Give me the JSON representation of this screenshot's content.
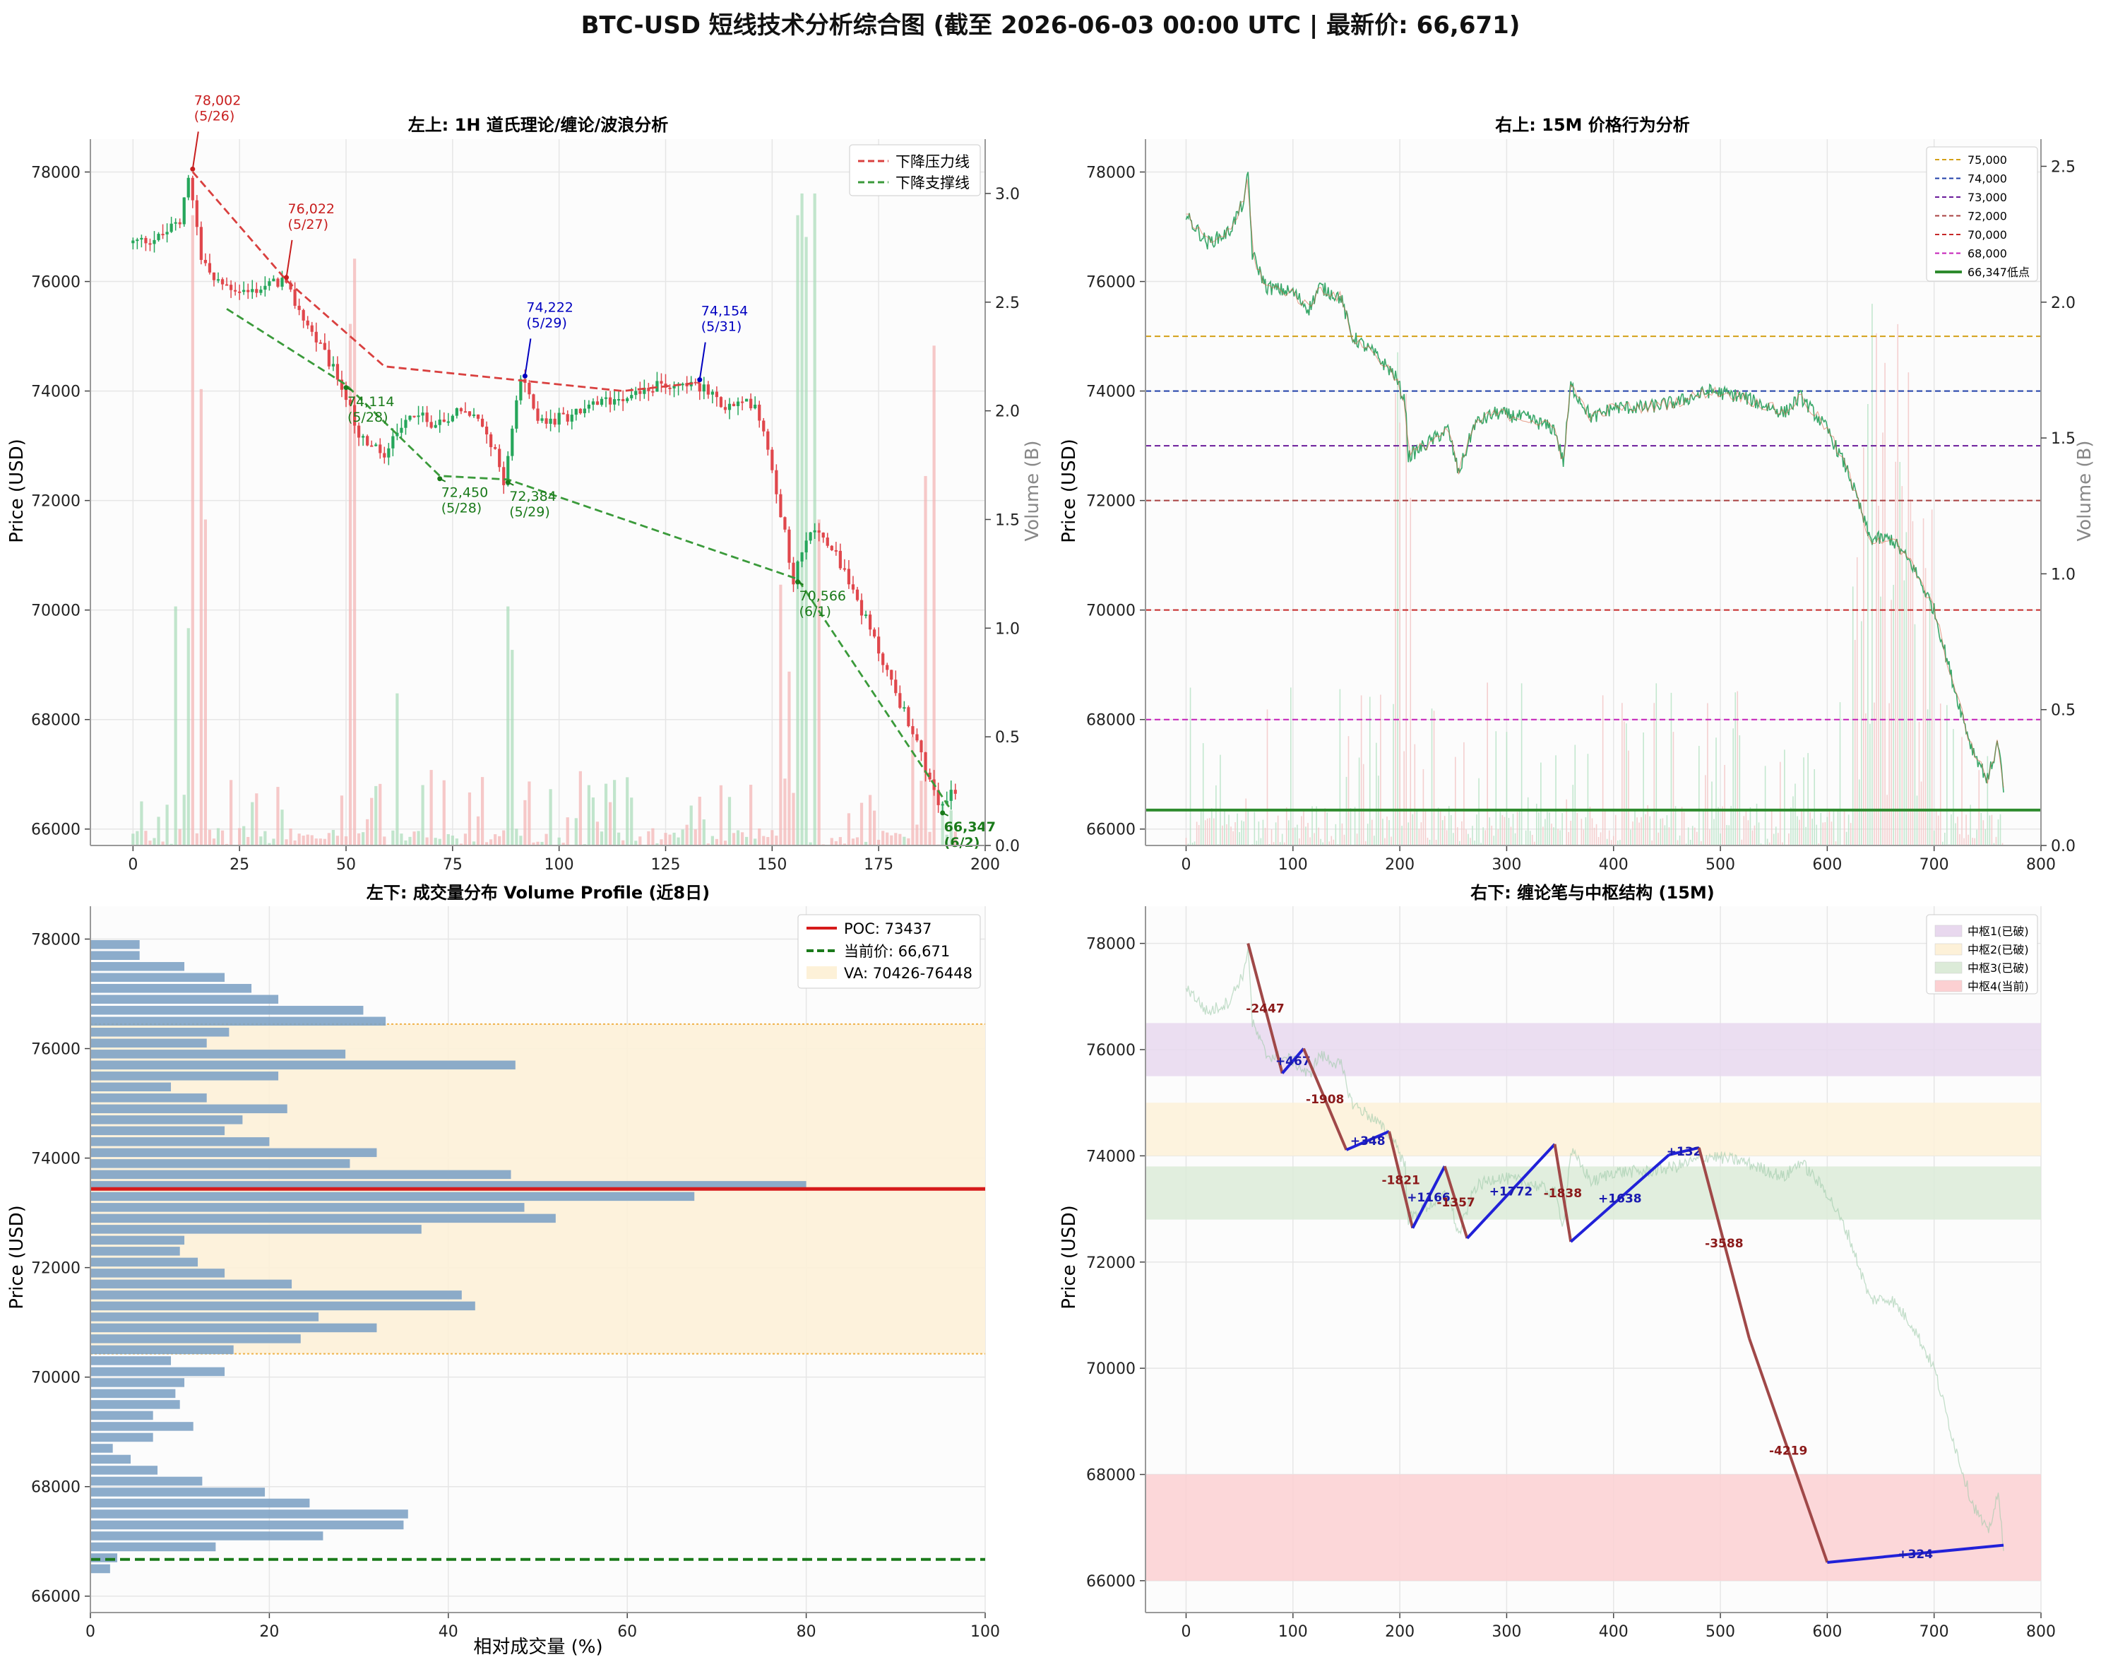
{
  "title": "BTC-USD 短线技术分析综合图 (截至 2026-06-03 00:00 UTC | 最新价: 66,671)",
  "colors": {
    "up": "#26a65b",
    "down": "#e0474c",
    "grid": "#e6e6e6",
    "axis": "#999999"
  },
  "charts": {
    "tl": {
      "title": "左上: 1H 道氏理论/缠论/波浪分析",
      "ylabel": "Price (USD)",
      "y2label": "Volume (B)",
      "legend": [
        "下降压力线",
        "下降支撑线"
      ],
      "annotations": [
        {
          "x": 14,
          "y": 78002,
          "text": "78,002",
          "date": "(5/26)",
          "color": "#c81e1e",
          "dx": 2,
          "dy": -95
        },
        {
          "x": 36,
          "y": 76022,
          "text": "76,022",
          "date": "(5/27)",
          "color": "#c81e1e",
          "dx": 2,
          "dy": -95
        },
        {
          "x": 92,
          "y": 74222,
          "text": "74,222",
          "date": "(5/29)",
          "color": "#0000c0",
          "dx": 2,
          "dy": -95
        },
        {
          "x": 133,
          "y": 74154,
          "text": "74,154",
          "date": "(5/31)",
          "color": "#0000c0",
          "dx": 2,
          "dy": -95
        },
        {
          "x": 50,
          "y": 74114,
          "text": "74,114",
          "date": "(5/28)",
          "color": "#1a7a1a",
          "dx": 2,
          "dy": 30
        },
        {
          "x": 72,
          "y": 72450,
          "text": "72,450",
          "date": "(5/28)",
          "color": "#1a7a1a",
          "dx": 2,
          "dy": 30
        },
        {
          "x": 88,
          "y": 72384,
          "text": "72,384",
          "date": "(5/29)",
          "color": "#1a7a1a",
          "dx": 2,
          "dy": 30
        },
        {
          "x": 156,
          "y": 70566,
          "text": "70,566",
          "date": "(6/1)",
          "color": "#1a7a1a",
          "dx": 2,
          "dy": 30
        },
        {
          "x": 190,
          "y": 66347,
          "text": "66,347",
          "date": "(6/2)",
          "color": "#1a7a1a",
          "dx": 2,
          "dy": 30,
          "bold": true
        }
      ]
    },
    "tr": {
      "title": "右上: 15M 价格行为分析",
      "ylabel": "Price (USD)",
      "y2label": "Volume (B)",
      "levels": [
        {
          "label": "75,000",
          "y": 75000,
          "color": "#d4a017"
        },
        {
          "label": "74,000",
          "y": 74000,
          "color": "#1f3fa8"
        },
        {
          "label": "73,000",
          "y": 73000,
          "color": "#6a1b9a"
        },
        {
          "label": "72,000",
          "y": 72000,
          "color": "#a84040"
        },
        {
          "label": "70,000",
          "y": 70000,
          "color": "#c62828"
        },
        {
          "label": "68,000",
          "y": 68000,
          "color": "#c41fb8"
        },
        {
          "label": "66,347低点",
          "y": 66347,
          "color": "#2e8b2e",
          "solid": true
        }
      ]
    },
    "bl": {
      "title": "左下: 成交量分布 Volume Profile (近8日)",
      "ylabel": "Price (USD)",
      "xlabel": "相对成交量 (%)",
      "legend": [
        "POC: 73437",
        "当前价: 66,671",
        "VA: 70426-76448"
      ]
    },
    "br": {
      "title": "右下: 缠论笔与中枢结构 (15M)",
      "ylabel": "Price (USD)",
      "zones": [
        {
          "label": "中枢1(已破)",
          "y0": 75500,
          "y1": 76500,
          "color": "#e8d8ee"
        },
        {
          "label": "中枢2(已破)",
          "y0": 74000,
          "y1": 75000,
          "color": "#fdf1d8"
        },
        {
          "label": "中枢3(已破)",
          "y0": 72800,
          "y1": 73800,
          "color": "#dcebd8"
        },
        {
          "label": "中枢4(当前)",
          "y0": 66000,
          "y1": 68000,
          "color": "#fcd0d2"
        }
      ]
    }
  },
  "chart_data": [
    {
      "type": "candlestick",
      "timeframe": "1H",
      "xlim": [
        -10,
        200
      ],
      "ylim": [
        65700,
        78600
      ],
      "y2lim": [
        0,
        3.25
      ],
      "xticks": [
        0,
        25,
        50,
        75,
        100,
        125,
        150,
        175,
        200
      ],
      "yticks": [
        66000,
        68000,
        70000,
        72000,
        74000,
        76000,
        78000
      ],
      "y2ticks": [
        0.0,
        0.5,
        1.0,
        1.5,
        2.0,
        2.5,
        3.0
      ],
      "price_path": [
        [
          0,
          76700
        ],
        [
          7,
          76800
        ],
        [
          12,
          77100
        ],
        [
          14,
          78002
        ],
        [
          17,
          76500
        ],
        [
          20,
          76000
        ],
        [
          28,
          75800
        ],
        [
          36,
          76022
        ],
        [
          42,
          75200
        ],
        [
          50,
          74114
        ],
        [
          54,
          73200
        ],
        [
          60,
          72800
        ],
        [
          66,
          73600
        ],
        [
          72,
          73400
        ],
        [
          78,
          73700
        ],
        [
          84,
          73300
        ],
        [
          88,
          72384
        ],
        [
          92,
          74222
        ],
        [
          97,
          73400
        ],
        [
          105,
          73600
        ],
        [
          115,
          73900
        ],
        [
          125,
          74100
        ],
        [
          133,
          74154
        ],
        [
          140,
          73700
        ],
        [
          147,
          73800
        ],
        [
          150,
          73000
        ],
        [
          156,
          70566
        ],
        [
          160,
          71500
        ],
        [
          165,
          71200
        ],
        [
          172,
          70000
        ],
        [
          180,
          68500
        ],
        [
          186,
          67400
        ],
        [
          190,
          66347
        ],
        [
          193,
          66671
        ]
      ],
      "resistance_line": {
        "name": "下降压力线",
        "points": [
          [
            14,
            78002
          ],
          [
            36,
            76022
          ],
          [
            59,
            74450
          ],
          [
            115,
            74000
          ],
          [
            133,
            74154
          ]
        ]
      },
      "support_line": {
        "name": "下降支撑线",
        "points": [
          [
            22,
            75500
          ],
          [
            50,
            74114
          ],
          [
            72,
            72450
          ],
          [
            88,
            72384
          ],
          [
            156,
            70566
          ],
          [
            192,
            66347
          ]
        ]
      },
      "volume_spikes": [
        [
          10,
          1.1
        ],
        [
          13,
          1.0
        ],
        [
          14,
          2.9
        ],
        [
          16,
          2.1
        ],
        [
          17,
          1.5
        ],
        [
          51,
          2.4
        ],
        [
          52,
          2.7
        ],
        [
          62,
          0.7
        ],
        [
          73,
          0.3
        ],
        [
          88,
          1.1
        ],
        [
          89,
          0.9
        ],
        [
          152,
          1.2
        ],
        [
          154,
          0.8
        ],
        [
          156,
          2.9
        ],
        [
          157,
          3.0
        ],
        [
          158,
          2.8
        ],
        [
          160,
          3.0
        ],
        [
          161,
          1.5
        ],
        [
          183,
          0.5
        ],
        [
          188,
          2.3
        ],
        [
          186,
          1.7
        ]
      ]
    },
    {
      "type": "line+volume",
      "timeframe": "15M",
      "xlim": [
        -38,
        800
      ],
      "ylim": [
        65700,
        78600
      ],
      "y2lim": [
        0,
        2.6
      ],
      "xticks": [
        0,
        100,
        200,
        300,
        400,
        500,
        600,
        700,
        800
      ],
      "yticks": [
        66000,
        68000,
        70000,
        72000,
        74000,
        76000,
        78000
      ],
      "y2ticks": [
        0.0,
        0.5,
        1.0,
        1.5,
        2.0,
        2.5
      ],
      "price_path": [
        [
          0,
          77200
        ],
        [
          20,
          76700
        ],
        [
          40,
          76900
        ],
        [
          55,
          77500
        ],
        [
          58,
          78000
        ],
        [
          62,
          76500
        ],
        [
          75,
          75900
        ],
        [
          100,
          75800
        ],
        [
          115,
          75500
        ],
        [
          125,
          75900
        ],
        [
          145,
          75700
        ],
        [
          155,
          75000
        ],
        [
          175,
          74700
        ],
        [
          195,
          74300
        ],
        [
          205,
          73800
        ],
        [
          208,
          72800
        ],
        [
          230,
          73100
        ],
        [
          245,
          73300
        ],
        [
          255,
          72500
        ],
        [
          270,
          73400
        ],
        [
          290,
          73600
        ],
        [
          320,
          73500
        ],
        [
          345,
          73300
        ],
        [
          353,
          72700
        ],
        [
          360,
          74100
        ],
        [
          380,
          73500
        ],
        [
          400,
          73700
        ],
        [
          430,
          73700
        ],
        [
          460,
          73800
        ],
        [
          490,
          74000
        ],
        [
          520,
          73900
        ],
        [
          560,
          73600
        ],
        [
          575,
          73900
        ],
        [
          600,
          73300
        ],
        [
          620,
          72500
        ],
        [
          640,
          71300
        ],
        [
          660,
          71300
        ],
        [
          680,
          70800
        ],
        [
          700,
          70000
        ],
        [
          720,
          68500
        ],
        [
          735,
          67500
        ],
        [
          750,
          66900
        ],
        [
          760,
          67600
        ],
        [
          765,
          66671
        ]
      ]
    },
    {
      "type": "horizontal_bar",
      "title": "Volume Profile",
      "xlim": [
        0,
        100
      ],
      "ylim": [
        65700,
        78600
      ],
      "xticks": [
        0,
        20,
        40,
        60,
        80,
        100
      ],
      "yticks": [
        66000,
        68000,
        70000,
        72000,
        74000,
        76000,
        78000
      ],
      "bin_width": 200,
      "bins": [
        [
          77800,
          5.5
        ],
        [
          77600,
          5.5
        ],
        [
          77400,
          10.5
        ],
        [
          77200,
          15
        ],
        [
          77000,
          18
        ],
        [
          76800,
          21
        ],
        [
          76600,
          30.5
        ],
        [
          76400,
          33
        ],
        [
          76200,
          15.5
        ],
        [
          76000,
          13
        ],
        [
          75800,
          28.5
        ],
        [
          75600,
          47.5
        ],
        [
          75400,
          21
        ],
        [
          75200,
          9
        ],
        [
          75000,
          13
        ],
        [
          74800,
          22
        ],
        [
          74600,
          17
        ],
        [
          74400,
          15
        ],
        [
          74200,
          20
        ],
        [
          74000,
          32
        ],
        [
          73800,
          29
        ],
        [
          73600,
          47
        ],
        [
          73400,
          80
        ],
        [
          73200,
          67.5
        ],
        [
          73000,
          48.5
        ],
        [
          72800,
          52
        ],
        [
          72600,
          37
        ],
        [
          72400,
          10.5
        ],
        [
          72200,
          10
        ],
        [
          72000,
          12
        ],
        [
          71800,
          15
        ],
        [
          71600,
          22.5
        ],
        [
          71400,
          41.5
        ],
        [
          71200,
          43
        ],
        [
          71000,
          25.5
        ],
        [
          70800,
          32
        ],
        [
          70600,
          23.5
        ],
        [
          70400,
          16
        ],
        [
          70200,
          9
        ],
        [
          70000,
          15
        ],
        [
          69800,
          10.5
        ],
        [
          69600,
          9.5
        ],
        [
          69400,
          10
        ],
        [
          69200,
          7
        ],
        [
          69000,
          11.5
        ],
        [
          68800,
          7
        ],
        [
          68600,
          2.5
        ],
        [
          68400,
          4.5
        ],
        [
          68200,
          7.5
        ],
        [
          68000,
          12.5
        ],
        [
          67800,
          19.5
        ],
        [
          67600,
          24.5
        ],
        [
          67400,
          35.5
        ],
        [
          67200,
          35
        ],
        [
          67000,
          26
        ],
        [
          66800,
          14
        ],
        [
          66600,
          3
        ],
        [
          66400,
          2.2
        ]
      ],
      "poc": 73437,
      "current_price": 66671,
      "value_area": [
        70426,
        76448
      ]
    },
    {
      "type": "line",
      "title": "缠论笔",
      "xlim": [
        -38,
        800
      ],
      "ylim": [
        65400,
        78700
      ],
      "xticks": [
        0,
        100,
        200,
        300,
        400,
        500,
        600,
        700,
        800
      ],
      "yticks": [
        66000,
        68000,
        70000,
        72000,
        74000,
        76000,
        78000
      ],
      "strokes": [
        {
          "x0": 58,
          "y0": 78000,
          "x1": 90,
          "y1": 75553,
          "label": "-2447"
        },
        {
          "x0": 90,
          "y0": 75553,
          "x1": 110,
          "y1": 76020,
          "label": "+467"
        },
        {
          "x0": 110,
          "y0": 76020,
          "x1": 150,
          "y1": 74112,
          "label": "-1908"
        },
        {
          "x0": 150,
          "y0": 74112,
          "x1": 190,
          "y1": 74460,
          "label": "+348"
        },
        {
          "x0": 190,
          "y0": 74460,
          "x1": 212,
          "y1": 72639,
          "label": "-1821"
        },
        {
          "x0": 212,
          "y0": 72639,
          "x1": 242,
          "y1": 73805,
          "label": "+1166"
        },
        {
          "x0": 242,
          "y0": 73805,
          "x1": 263,
          "y1": 72448,
          "label": "-1357"
        },
        {
          "x0": 263,
          "y0": 72448,
          "x1": 345,
          "y1": 74220,
          "label": "+1772"
        },
        {
          "x0": 345,
          "y0": 74220,
          "x1": 360,
          "y1": 72382,
          "label": "-1838"
        },
        {
          "x0": 360,
          "y0": 72382,
          "x1": 452,
          "y1": 74020,
          "label": "+1638"
        },
        {
          "x0": 452,
          "y0": 74020,
          "x1": 480,
          "y1": 74152,
          "label": "+132"
        },
        {
          "x0": 480,
          "y0": 74152,
          "x1": 527,
          "y1": 70564,
          "label": "-3588"
        },
        {
          "x0": 527,
          "y0": 70564,
          "x1": 600,
          "y1": 66345,
          "label": "-4219"
        },
        {
          "x0": 600,
          "y0": 66345,
          "x1": 765,
          "y1": 66669,
          "label": "+324"
        }
      ]
    }
  ]
}
